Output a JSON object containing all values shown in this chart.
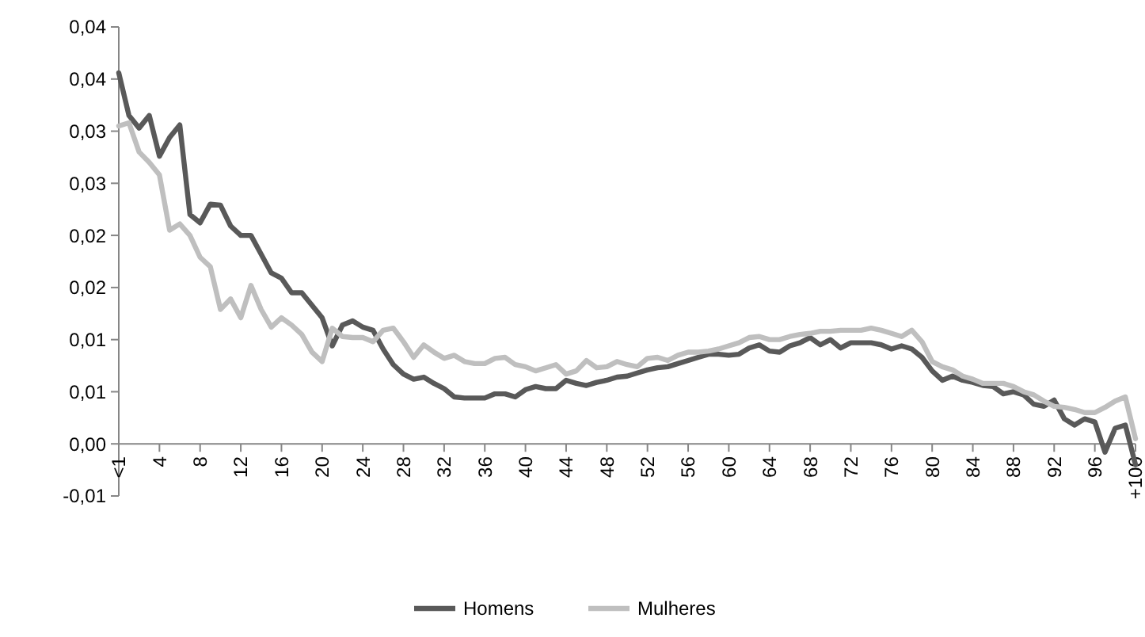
{
  "chart_data": {
    "type": "line",
    "categories": [
      "<1",
      null,
      null,
      null,
      "4",
      null,
      null,
      null,
      "8",
      null,
      null,
      null,
      "12",
      null,
      null,
      null,
      "16",
      null,
      null,
      null,
      "20",
      null,
      null,
      null,
      "24",
      null,
      null,
      null,
      "28",
      null,
      null,
      null,
      "32",
      null,
      null,
      null,
      "36",
      null,
      null,
      null,
      "40",
      null,
      null,
      null,
      "44",
      null,
      null,
      null,
      "48",
      null,
      null,
      null,
      "52",
      null,
      null,
      null,
      "56",
      null,
      null,
      null,
      "60",
      null,
      null,
      null,
      "64",
      null,
      null,
      null,
      "68",
      null,
      null,
      null,
      "72",
      null,
      null,
      null,
      "76",
      null,
      null,
      null,
      "80",
      null,
      null,
      null,
      "84",
      null,
      null,
      null,
      "88",
      null,
      null,
      null,
      "92",
      null,
      null,
      null,
      "96",
      null,
      null,
      null,
      "+100"
    ],
    "series": [
      {
        "name": "Homens",
        "color": "#595959",
        "values": [
          0.0356,
          0.0315,
          0.0303,
          0.0315,
          0.0276,
          0.0294,
          0.0306,
          0.022,
          0.0212,
          0.023,
          0.0229,
          0.0209,
          0.02,
          0.02,
          0.0182,
          0.0164,
          0.0159,
          0.0145,
          0.0145,
          0.0133,
          0.0121,
          0.0094,
          0.0114,
          0.0118,
          0.0112,
          0.0109,
          0.0091,
          0.0076,
          0.0067,
          0.0062,
          0.0064,
          0.0058,
          0.0053,
          0.0045,
          0.0044,
          0.0044,
          0.0044,
          0.0048,
          0.0048,
          0.0045,
          0.0052,
          0.0055,
          0.0053,
          0.0053,
          0.0061,
          0.0058,
          0.0056,
          0.0059,
          0.0061,
          0.0064,
          0.0065,
          0.0068,
          0.0071,
          0.0073,
          0.0074,
          0.0077,
          0.008,
          0.0083,
          0.0086,
          0.0086,
          0.0085,
          0.0086,
          0.0092,
          0.0095,
          0.0089,
          0.0088,
          0.0094,
          0.0097,
          0.0102,
          0.0095,
          0.01,
          0.0092,
          0.0097,
          0.0097,
          0.0097,
          0.0095,
          0.0091,
          0.0094,
          0.0091,
          0.0083,
          0.007,
          0.0061,
          0.0065,
          0.0061,
          0.0059,
          0.0056,
          0.0055,
          0.0048,
          0.005,
          0.0047,
          0.0038,
          0.0036,
          0.0042,
          0.0024,
          0.0018,
          0.0024,
          0.0021,
          -0.0008,
          0.0015,
          0.0018,
          -0.002
        ]
      },
      {
        "name": "Mulheres",
        "color": "#bfbfbf",
        "values": [
          0.0305,
          0.0308,
          0.028,
          0.027,
          0.0258,
          0.0205,
          0.0211,
          0.02,
          0.0179,
          0.017,
          0.0129,
          0.0139,
          0.0121,
          0.0152,
          0.0129,
          0.0112,
          0.0121,
          0.0114,
          0.0105,
          0.0088,
          0.0079,
          0.0111,
          0.0103,
          0.0102,
          0.0102,
          0.0098,
          0.0109,
          0.0111,
          0.0098,
          0.0083,
          0.0095,
          0.0088,
          0.0082,
          0.0085,
          0.0079,
          0.0077,
          0.0077,
          0.0082,
          0.0083,
          0.0076,
          0.0074,
          0.007,
          0.0073,
          0.0076,
          0.0067,
          0.007,
          0.008,
          0.0073,
          0.0074,
          0.0079,
          0.0076,
          0.0074,
          0.0082,
          0.0083,
          0.008,
          0.0085,
          0.0088,
          0.0088,
          0.0089,
          0.0091,
          0.0094,
          0.0097,
          0.0102,
          0.0103,
          0.01,
          0.01,
          0.0103,
          0.0105,
          0.0106,
          0.0108,
          0.0108,
          0.0109,
          0.0109,
          0.0109,
          0.0111,
          0.0109,
          0.0106,
          0.0103,
          0.0109,
          0.0098,
          0.0079,
          0.0074,
          0.0071,
          0.0065,
          0.0062,
          0.0058,
          0.0058,
          0.0058,
          0.0055,
          0.005,
          0.0047,
          0.0041,
          0.0036,
          0.0035,
          0.0033,
          0.003,
          0.003,
          0.0035,
          0.0041,
          0.0045,
          0.0005
        ]
      }
    ],
    "ylim": [
      -0.005,
      0.04
    ],
    "yticks": [
      {
        "value": -0.005,
        "label": "-0,01"
      },
      {
        "value": 0,
        "label": "0,00"
      },
      {
        "value": 0.005,
        "label": "0,01"
      },
      {
        "value": 0.01,
        "label": "0,01"
      },
      {
        "value": 0.015,
        "label": "0,02"
      },
      {
        "value": 0.02,
        "label": "0,02"
      },
      {
        "value": 0.025,
        "label": "0,03"
      },
      {
        "value": 0.03,
        "label": "0,03"
      },
      {
        "value": 0.035,
        "label": "0,04"
      },
      {
        "value": 0.04,
        "label": "0,04"
      }
    ],
    "grid": false,
    "legend": "bottom",
    "marker": "none",
    "line_style": "solid"
  }
}
